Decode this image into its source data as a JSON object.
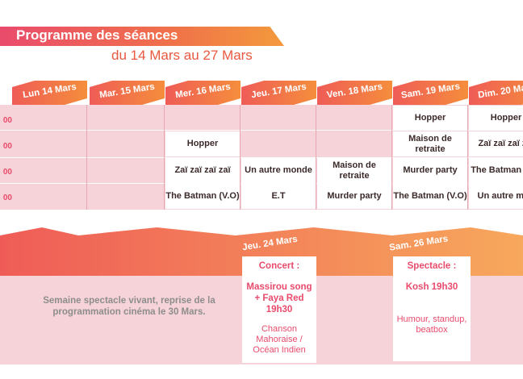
{
  "header": {
    "title": "Programme des séances",
    "subtitle": "du 14 Mars au 27 Mars"
  },
  "week1": {
    "time_fragments": [
      "00",
      "00",
      "00",
      "00"
    ],
    "days": [
      {
        "label": "Lun 14 Mars",
        "cells": [
          "",
          "",
          "",
          ""
        ]
      },
      {
        "label": "Mar. 15 Mars",
        "cells": [
          "",
          "",
          "",
          ""
        ]
      },
      {
        "label": "Mer. 16 Mars",
        "cells": [
          "",
          "Hopper",
          "Zaï zaï zaï zaï",
          "The Batman (V.O)"
        ]
      },
      {
        "label": "Jeu. 17 Mars",
        "cells": [
          "",
          "",
          "Un autre monde",
          "E.T"
        ]
      },
      {
        "label": "Ven. 18 Mars",
        "cells": [
          "",
          "",
          "Maison de retraite",
          "Murder party"
        ]
      },
      {
        "label": "Sam. 19 Mars",
        "cells": [
          "Hopper",
          "Maison de retraite",
          "Murder party",
          "The Batman (V.O)"
        ]
      },
      {
        "label": "Dim. 20 Mars",
        "cells": [
          "Hopper",
          "Zaï zaï zaï zaï",
          "The Batman (V.O",
          "Un autre mon"
        ]
      }
    ]
  },
  "week2": {
    "notice": "Semaine spectacle vivant, reprise de la programmation cinéma le 30 Mars.",
    "jeu": {
      "label": "Jeu. 24 Mars",
      "type": "Concert :",
      "title": "Massirou song + Faya Red 19h30",
      "desc": "Chanson Mahoraise / Océan Indien"
    },
    "sam": {
      "label": "Sam. 26 Mars",
      "type": "Spectacle :",
      "title": "Kosh 19h30",
      "desc": "Humour, standup, beatbox"
    }
  },
  "colors": {
    "accent": "#e94b6c",
    "orange": "#f39a3c",
    "pink_bg": "#f6d3d8"
  }
}
